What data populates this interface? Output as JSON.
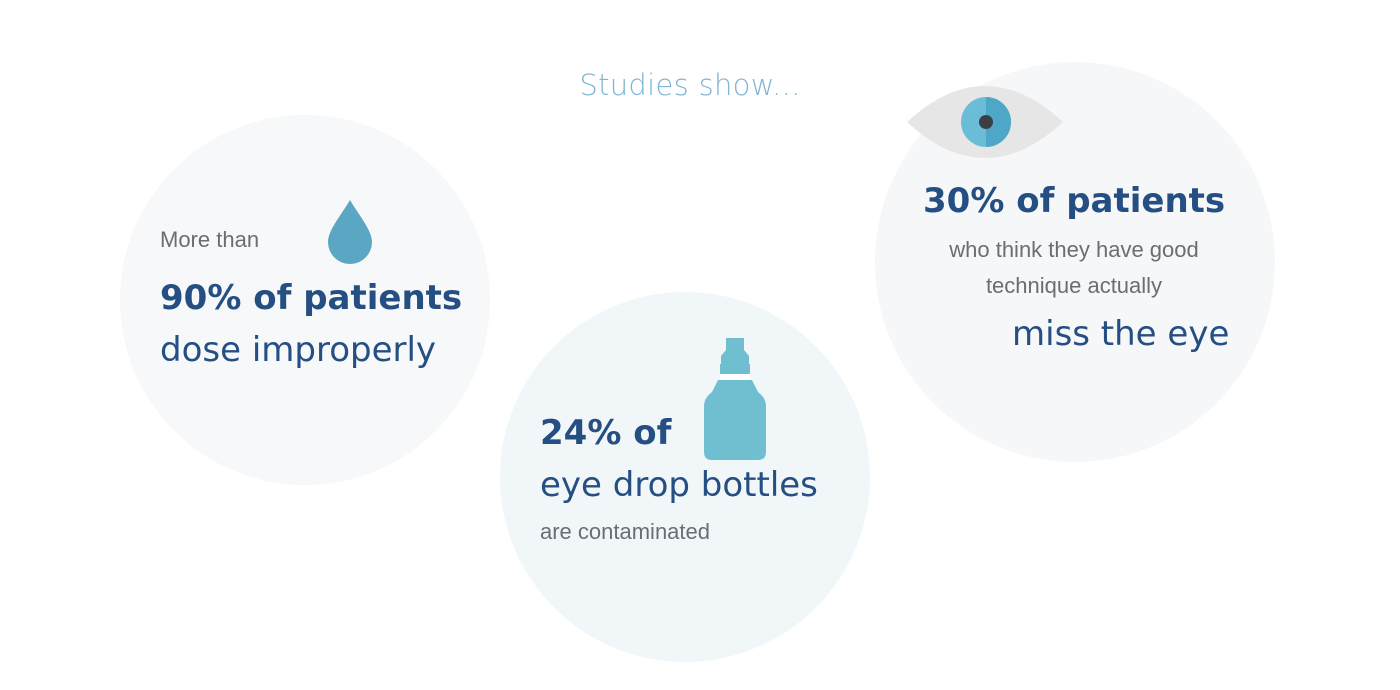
{
  "heading": "Studies show...",
  "colors": {
    "heading": "#7eb5d3",
    "stat_dark": "#254f82",
    "body_gray": "#6a6e72",
    "drop": "#5ba6c3",
    "bottle": "#70bfd0",
    "iris": "#6bbcd6"
  },
  "stats": [
    {
      "icon": "water-drop-icon",
      "prefix": "More than",
      "highlight": "90% of patients",
      "description": "dose improperly"
    },
    {
      "icon": "eye-drop-bottle-icon",
      "highlight": "24% of",
      "description": "eye drop bottles",
      "suffix": "are contaminated"
    },
    {
      "icon": "eye-icon",
      "highlight": "30% of patients",
      "description_lines": [
        "who think they have good",
        "technique actually"
      ],
      "outcome": "miss the eye"
    }
  ]
}
